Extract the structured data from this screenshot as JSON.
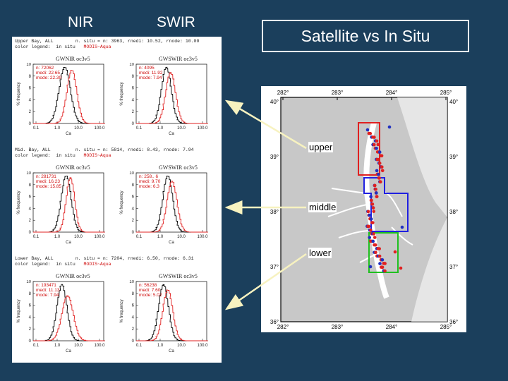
{
  "headers": {
    "nir": "NIR",
    "swir": "SWIR"
  },
  "title": "Satellite vs In Situ",
  "rows": [
    {
      "line1": "Upper Bay, ALL        n. situ = n: 3963, rnedi: 10.52, rnode: 10.00",
      "line2": "color legend:  in situ",
      "legend": "MODIS~Aqua",
      "nir_title": "GWNIR oc3v5",
      "swir_title": "GWSWIR oc3v5",
      "nir_stats": "n: 72062\nmedi: 22.65\nmode: 22.39",
      "swir_stats": "n: 4095\nmedi: 11.92\nmode: 7.94"
    },
    {
      "line1": "Mid. Bay, ALL         n. situ = n: 5814, rnedi: 8.43, rnode: 7.94",
      "line2": "color legend:  in situ",
      "legend": "MODIS~Aqua",
      "nir_title": "GWNIR oc3v5",
      "swir_title": "GWSWIR oc3v5",
      "nir_stats": "n: 281731\nmedi: 16.23\nmode: 15.85",
      "swir_stats": "n: 258.. 6\nmedi: 9.70\nmode: 6.3"
    },
    {
      "line1": "Lower Bay, ALL        n. situ = n: 7204, rnedi: 6.50, rnode: 6.31",
      "line2": "color legend:  in situ",
      "legend": "MODIS~Aqua",
      "nir_title": "GWNIR oc3v5",
      "swir_title": "GWSWIR oc3v5",
      "nir_stats": "n: 193471\nmedi: 11.13\nmode: 7.94",
      "swir_stats": "n: 56238\nmedi: 7.60\nmode: 5.02"
    }
  ],
  "plot_axes": {
    "ylabel": "% frequency",
    "xlabel": "Ca",
    "xticks": [
      "0.1",
      "1.0",
      "10.0",
      "100.0"
    ],
    "yticks": [
      "0",
      "2",
      "4",
      "6",
      "8",
      "10"
    ]
  },
  "map": {
    "top_ticks": [
      "282°",
      "283°",
      "284°",
      "285°"
    ],
    "bottom_ticks": [
      "282°",
      "283°",
      "284°",
      "285°"
    ],
    "left_ticks": [
      "40°",
      "39°",
      "38°",
      "37°",
      "36°"
    ],
    "right_ticks": [
      "40°",
      "39°",
      "38°",
      "37°",
      "36°"
    ]
  },
  "regions": [
    {
      "label": "upper",
      "color": "#e02020"
    },
    {
      "label": "middle",
      "color": "#2020e0"
    },
    {
      "label": "lower",
      "color": "#20c020"
    }
  ],
  "colors": {
    "background": "#1b3f5c",
    "arrow": "#f7f2c0",
    "in_situ": "#000000",
    "modis": "#e02020"
  }
}
